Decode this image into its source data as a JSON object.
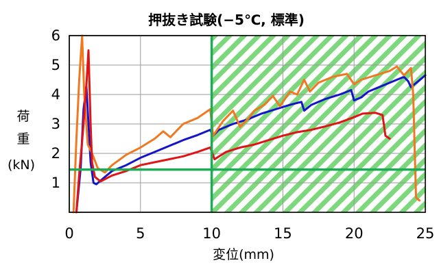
{
  "chart_data": {
    "type": "line",
    "title": "押抜き試験(−5℃, 標準)",
    "xlabel": "変位(mm)",
    "ylabel_lines": [
      "荷",
      "重",
      "(kN)"
    ],
    "xlim": [
      0,
      25
    ],
    "ylim": [
      0,
      6
    ],
    "xticks": [
      0,
      5,
      10,
      15,
      20,
      25
    ],
    "yticks": [
      1,
      2,
      3,
      4,
      5,
      6
    ],
    "grid": true,
    "shaded_region": {
      "x_from": 10,
      "x_to": 25,
      "pattern": "diagonal-hatch",
      "color": "#7dd87d"
    },
    "reference_lines": [
      {
        "orientation": "horizontal",
        "value": 1.45,
        "color": "#1faa55"
      },
      {
        "orientation": "vertical",
        "value": 10,
        "color": "#1faa55"
      }
    ],
    "series": [
      {
        "color": "#1414c8",
        "points": [
          [
            0.5,
            0
          ],
          [
            0.8,
            1.5
          ],
          [
            1.0,
            3.5
          ],
          [
            1.2,
            4.3
          ],
          [
            1.35,
            3.0
          ],
          [
            1.5,
            1.7
          ],
          [
            1.7,
            1.0
          ],
          [
            1.9,
            0.95
          ],
          [
            2.5,
            1.2
          ],
          [
            3,
            1.4
          ],
          [
            4,
            1.6
          ],
          [
            5,
            1.85
          ],
          [
            6,
            2.05
          ],
          [
            7,
            2.25
          ],
          [
            8,
            2.45
          ],
          [
            9,
            2.62
          ],
          [
            9.9,
            2.8
          ],
          [
            10.1,
            2.6
          ],
          [
            10.5,
            2.8
          ],
          [
            11.5,
            3.0
          ],
          [
            12.5,
            3.15
          ],
          [
            13.5,
            3.35
          ],
          [
            14.5,
            3.5
          ],
          [
            15.5,
            3.65
          ],
          [
            16.3,
            3.75
          ],
          [
            16.5,
            3.45
          ],
          [
            17,
            3.65
          ],
          [
            18,
            3.85
          ],
          [
            19,
            4.0
          ],
          [
            19.8,
            4.15
          ],
          [
            20,
            3.8
          ],
          [
            20.5,
            3.9
          ],
          [
            21,
            4.1
          ],
          [
            22,
            4.3
          ],
          [
            23,
            4.5
          ],
          [
            23.5,
            4.6
          ],
          [
            23.8,
            4.45
          ],
          [
            24,
            4.25
          ],
          [
            24.5,
            4.45
          ],
          [
            25,
            4.65
          ]
        ]
      },
      {
        "color": "#f07820",
        "points": [
          [
            0.3,
            0
          ],
          [
            0.5,
            2.5
          ],
          [
            0.7,
            4.5
          ],
          [
            0.9,
            6.0
          ],
          [
            1.05,
            4.0
          ],
          [
            1.3,
            2.3
          ],
          [
            1.6,
            2.0
          ],
          [
            2.0,
            1.5
          ],
          [
            2.5,
            1.35
          ],
          [
            3,
            1.6
          ],
          [
            4,
            1.95
          ],
          [
            5,
            2.2
          ],
          [
            6,
            2.5
          ],
          [
            6.6,
            2.75
          ],
          [
            7.1,
            2.55
          ],
          [
            8,
            3.0
          ],
          [
            9,
            3.2
          ],
          [
            9.9,
            3.5
          ],
          [
            10.1,
            2.6
          ],
          [
            10.8,
            3.1
          ],
          [
            11.5,
            3.45
          ],
          [
            12,
            2.9
          ],
          [
            12.6,
            3.2
          ],
          [
            13,
            3.45
          ],
          [
            13.7,
            3.65
          ],
          [
            14.3,
            3.95
          ],
          [
            14.8,
            3.6
          ],
          [
            15.5,
            4.1
          ],
          [
            16,
            4.0
          ],
          [
            16.5,
            4.5
          ],
          [
            16.9,
            4.1
          ],
          [
            17.5,
            4.4
          ],
          [
            18.5,
            4.6
          ],
          [
            19.5,
            4.7
          ],
          [
            20.0,
            4.35
          ],
          [
            20.5,
            4.5
          ],
          [
            21.5,
            4.65
          ],
          [
            22.5,
            4.8
          ],
          [
            23,
            4.95
          ],
          [
            23.5,
            4.65
          ],
          [
            24,
            4.9
          ],
          [
            24.15,
            4.0
          ],
          [
            24.35,
            0.5
          ],
          [
            24.6,
            0.4
          ]
        ]
      },
      {
        "color": "#e01414",
        "points": [
          [
            0.5,
            0
          ],
          [
            0.7,
            1.3
          ],
          [
            0.9,
            2.4
          ],
          [
            1.0,
            3.0
          ],
          [
            1.2,
            4.3
          ],
          [
            1.35,
            5.5
          ],
          [
            1.5,
            3.0
          ],
          [
            1.6,
            1.7
          ],
          [
            1.8,
            1.2
          ],
          [
            2.2,
            1.05
          ],
          [
            3,
            1.25
          ],
          [
            4,
            1.4
          ],
          [
            5,
            1.6
          ],
          [
            6,
            1.7
          ],
          [
            7,
            1.8
          ],
          [
            8,
            1.9
          ],
          [
            9,
            2.05
          ],
          [
            9.9,
            2.2
          ],
          [
            10.2,
            1.8
          ],
          [
            11,
            2.05
          ],
          [
            12,
            2.2
          ],
          [
            13,
            2.3
          ],
          [
            14,
            2.45
          ],
          [
            15,
            2.6
          ],
          [
            16,
            2.72
          ],
          [
            17,
            2.8
          ],
          [
            18,
            2.92
          ],
          [
            19,
            3.05
          ],
          [
            20.1,
            3.25
          ],
          [
            20.6,
            3.35
          ],
          [
            21.5,
            3.38
          ],
          [
            22,
            3.3
          ],
          [
            22.2,
            2.6
          ],
          [
            22.5,
            2.5
          ]
        ]
      }
    ]
  }
}
